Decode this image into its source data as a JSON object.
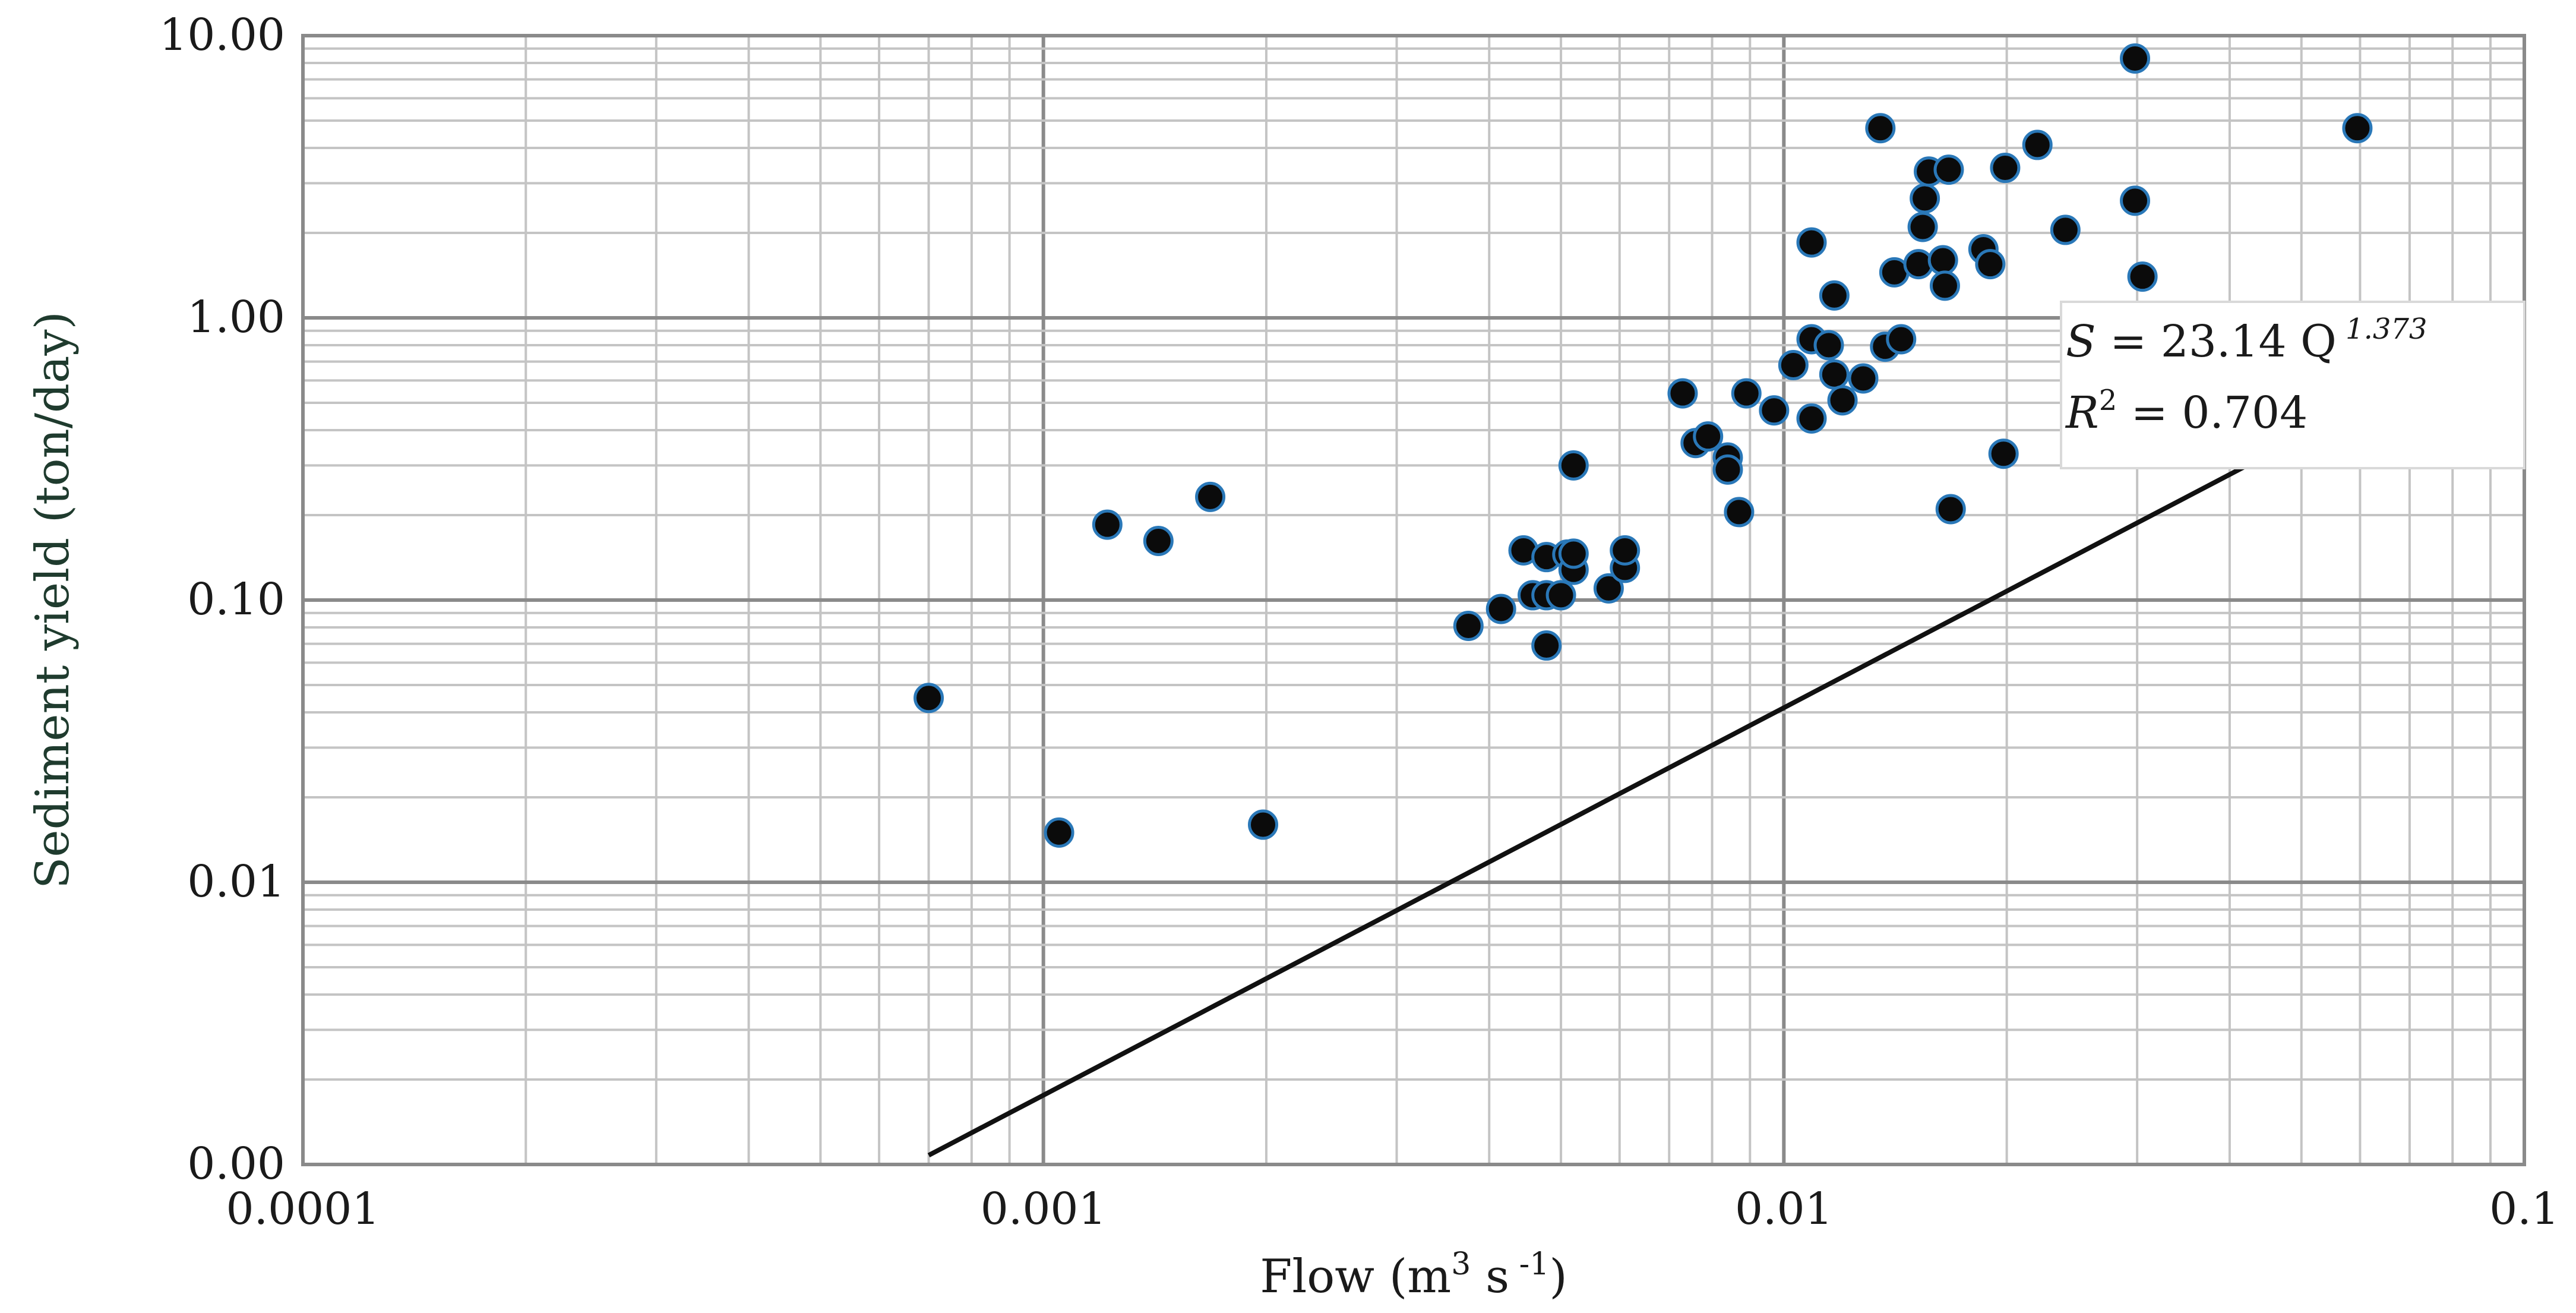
{
  "chart_data": {
    "type": "scatter",
    "title": "",
    "xlabel_main": "Flow (m",
    "xlabel_sup1": "3",
    "xlabel_mid": " s",
    "xlabel_sup2": " -1",
    "xlabel_end": ")",
    "ylabel": "Sediment yield (ton/day)",
    "x_scale": "log",
    "y_scale": "log",
    "xlim": [
      0.0001,
      0.1
    ],
    "ylim": [
      0.001,
      10
    ],
    "x_ticks": [
      {
        "value": 0.0001,
        "label": "0.0001"
      },
      {
        "value": 0.001,
        "label": "0.001"
      },
      {
        "value": 0.01,
        "label": "0.01"
      },
      {
        "value": 0.1,
        "label": "0.1"
      }
    ],
    "y_ticks": [
      {
        "value": 0.001,
        "label": "0.00"
      },
      {
        "value": 0.01,
        "label": "0.01"
      },
      {
        "value": 0.1,
        "label": "0.10"
      },
      {
        "value": 1,
        "label": "1.00"
      },
      {
        "value": 10,
        "label": "10.00"
      }
    ],
    "grid": true,
    "series": [
      {
        "points": [
          [
            0.0007,
            0.045
          ],
          [
            0.00105,
            0.015
          ],
          [
            0.00122,
            0.185
          ],
          [
            0.00143,
            0.162
          ],
          [
            0.00168,
            0.232
          ],
          [
            0.00198,
            0.016
          ],
          [
            0.00375,
            0.081
          ],
          [
            0.00415,
            0.093
          ],
          [
            0.00445,
            0.15
          ],
          [
            0.00458,
            0.104
          ],
          [
            0.00478,
            0.104
          ],
          [
            0.00478,
            0.142
          ],
          [
            0.00478,
            0.069
          ],
          [
            0.005,
            0.104
          ],
          [
            0.0051,
            0.145
          ],
          [
            0.0052,
            0.128
          ],
          [
            0.0052,
            0.146
          ],
          [
            0.0052,
            0.3
          ],
          [
            0.0058,
            0.11
          ],
          [
            0.0061,
            0.13
          ],
          [
            0.0061,
            0.15
          ],
          [
            0.0073,
            0.54
          ],
          [
            0.0076,
            0.36
          ],
          [
            0.0079,
            0.38
          ],
          [
            0.0084,
            0.32
          ],
          [
            0.0084,
            0.29
          ],
          [
            0.0087,
            0.205
          ],
          [
            0.0089,
            0.54
          ],
          [
            0.0097,
            0.47
          ],
          [
            0.0103,
            0.68
          ],
          [
            0.0109,
            0.44
          ],
          [
            0.0109,
            0.84
          ],
          [
            0.0109,
            1.85
          ],
          [
            0.0115,
            0.8
          ],
          [
            0.0117,
            1.2
          ],
          [
            0.0117,
            0.63
          ],
          [
            0.012,
            0.51
          ],
          [
            0.0128,
            0.61
          ],
          [
            0.0135,
            4.7
          ],
          [
            0.0137,
            0.79
          ],
          [
            0.0141,
            1.45
          ],
          [
            0.0144,
            0.84
          ],
          [
            0.0152,
            1.55
          ],
          [
            0.0154,
            2.1
          ],
          [
            0.0155,
            2.65
          ],
          [
            0.0157,
            3.3
          ],
          [
            0.0164,
            1.6
          ],
          [
            0.0165,
            1.3
          ],
          [
            0.0167,
            3.35
          ],
          [
            0.0168,
            0.21
          ],
          [
            0.0186,
            1.75
          ],
          [
            0.019,
            1.55
          ],
          [
            0.0198,
            0.33
          ],
          [
            0.0199,
            3.4
          ],
          [
            0.022,
            4.1
          ],
          [
            0.024,
            2.05
          ],
          [
            0.0298,
            8.3
          ],
          [
            0.0298,
            2.6
          ],
          [
            0.0305,
            1.4
          ],
          [
            0.0595,
            4.7
          ]
        ]
      }
    ],
    "trendline": {
      "type": "power",
      "a": 23.14,
      "b": 1.373,
      "x_range": [
        0.0007,
        0.06
      ]
    },
    "annotation": {
      "eq_S": "S",
      "eq_body": " = 23.14 Q",
      "eq_exp": " 1.373",
      "r2_R": "R",
      "r2_sup": "2",
      "r2_body": " = 0.704"
    }
  }
}
